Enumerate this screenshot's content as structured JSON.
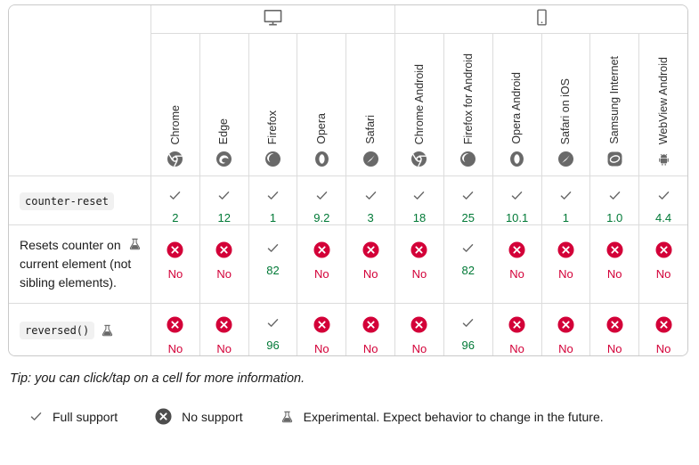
{
  "colors": {
    "green": "#007936",
    "red": "#d30038",
    "icon_gray": "#696969",
    "legend_no_gray": "#4e4e4e",
    "border": "#dcdcdc"
  },
  "table": {
    "groups": [
      {
        "icon": "desktop",
        "span": 5
      },
      {
        "icon": "mobile",
        "span": 6
      }
    ],
    "browsers": [
      {
        "name": "Chrome",
        "icon": "chrome"
      },
      {
        "name": "Edge",
        "icon": "edge"
      },
      {
        "name": "Firefox",
        "icon": "firefox"
      },
      {
        "name": "Opera",
        "icon": "opera"
      },
      {
        "name": "Safari",
        "icon": "safari"
      },
      {
        "name": "Chrome Android",
        "icon": "chrome"
      },
      {
        "name": "Firefox for Android",
        "icon": "firefox"
      },
      {
        "name": "Opera Android",
        "icon": "opera"
      },
      {
        "name": "Safari on iOS",
        "icon": "safari"
      },
      {
        "name": "Samsung Internet",
        "icon": "samsung"
      },
      {
        "name": "WebView Android",
        "icon": "webview"
      }
    ],
    "rows": [
      {
        "feature": "counter-reset",
        "feature_style": "code",
        "experimental": false,
        "cells": [
          {
            "support": "yes",
            "label": "2"
          },
          {
            "support": "yes",
            "label": "12"
          },
          {
            "support": "yes",
            "label": "1"
          },
          {
            "support": "yes",
            "label": "9.2"
          },
          {
            "support": "yes",
            "label": "3"
          },
          {
            "support": "yes",
            "label": "18"
          },
          {
            "support": "yes",
            "label": "25"
          },
          {
            "support": "yes",
            "label": "10.1"
          },
          {
            "support": "yes",
            "label": "1"
          },
          {
            "support": "yes",
            "label": "1.0"
          },
          {
            "support": "yes",
            "label": "4.4"
          }
        ]
      },
      {
        "feature": "Resets counter on current element (not sibling elements).",
        "feature_style": "text",
        "experimental": true,
        "cells": [
          {
            "support": "no",
            "label": "No"
          },
          {
            "support": "no",
            "label": "No"
          },
          {
            "support": "yes",
            "label": "82"
          },
          {
            "support": "no",
            "label": "No"
          },
          {
            "support": "no",
            "label": "No"
          },
          {
            "support": "no",
            "label": "No"
          },
          {
            "support": "yes",
            "label": "82"
          },
          {
            "support": "no",
            "label": "No"
          },
          {
            "support": "no",
            "label": "No"
          },
          {
            "support": "no",
            "label": "No"
          },
          {
            "support": "no",
            "label": "No"
          }
        ]
      },
      {
        "feature": "reversed()",
        "feature_style": "code",
        "experimental": true,
        "cells": [
          {
            "support": "no",
            "label": "No"
          },
          {
            "support": "no",
            "label": "No"
          },
          {
            "support": "yes",
            "label": "96"
          },
          {
            "support": "no",
            "label": "No"
          },
          {
            "support": "no",
            "label": "No"
          },
          {
            "support": "no",
            "label": "No"
          },
          {
            "support": "yes",
            "label": "96"
          },
          {
            "support": "no",
            "label": "No"
          },
          {
            "support": "no",
            "label": "No"
          },
          {
            "support": "no",
            "label": "No"
          },
          {
            "support": "no",
            "label": "No"
          }
        ]
      }
    ]
  },
  "tip": "Tip: you can click/tap on a cell for more information.",
  "legend": {
    "full_support": "Full support",
    "no_support": "No support",
    "experimental": "Experimental. Expect behavior to change in the future."
  }
}
